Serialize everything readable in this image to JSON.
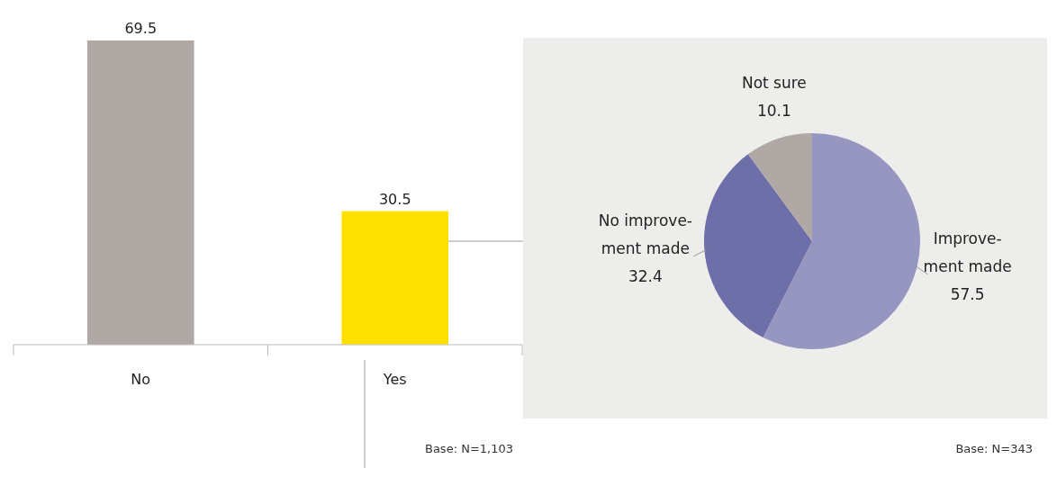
{
  "chart_data": [
    {
      "type": "bar",
      "categories": [
        "No",
        "Yes"
      ],
      "values": [
        69.5,
        30.5
      ],
      "colors": [
        "#b0a8a5",
        "#ffe000"
      ],
      "data_labels": true,
      "annotations": [
        "Base: N=1,103"
      ]
    },
    {
      "type": "pie",
      "categories": [
        "Improve-\nment made",
        "No improve-\nment made",
        "Not sure"
      ],
      "values": [
        57.5,
        32.4,
        10.1
      ],
      "colors": [
        "#9696c0",
        "#6e6ea8",
        "#b0a8a5"
      ],
      "data_labels": true,
      "annotations": [
        "Base: N=343"
      ]
    }
  ]
}
